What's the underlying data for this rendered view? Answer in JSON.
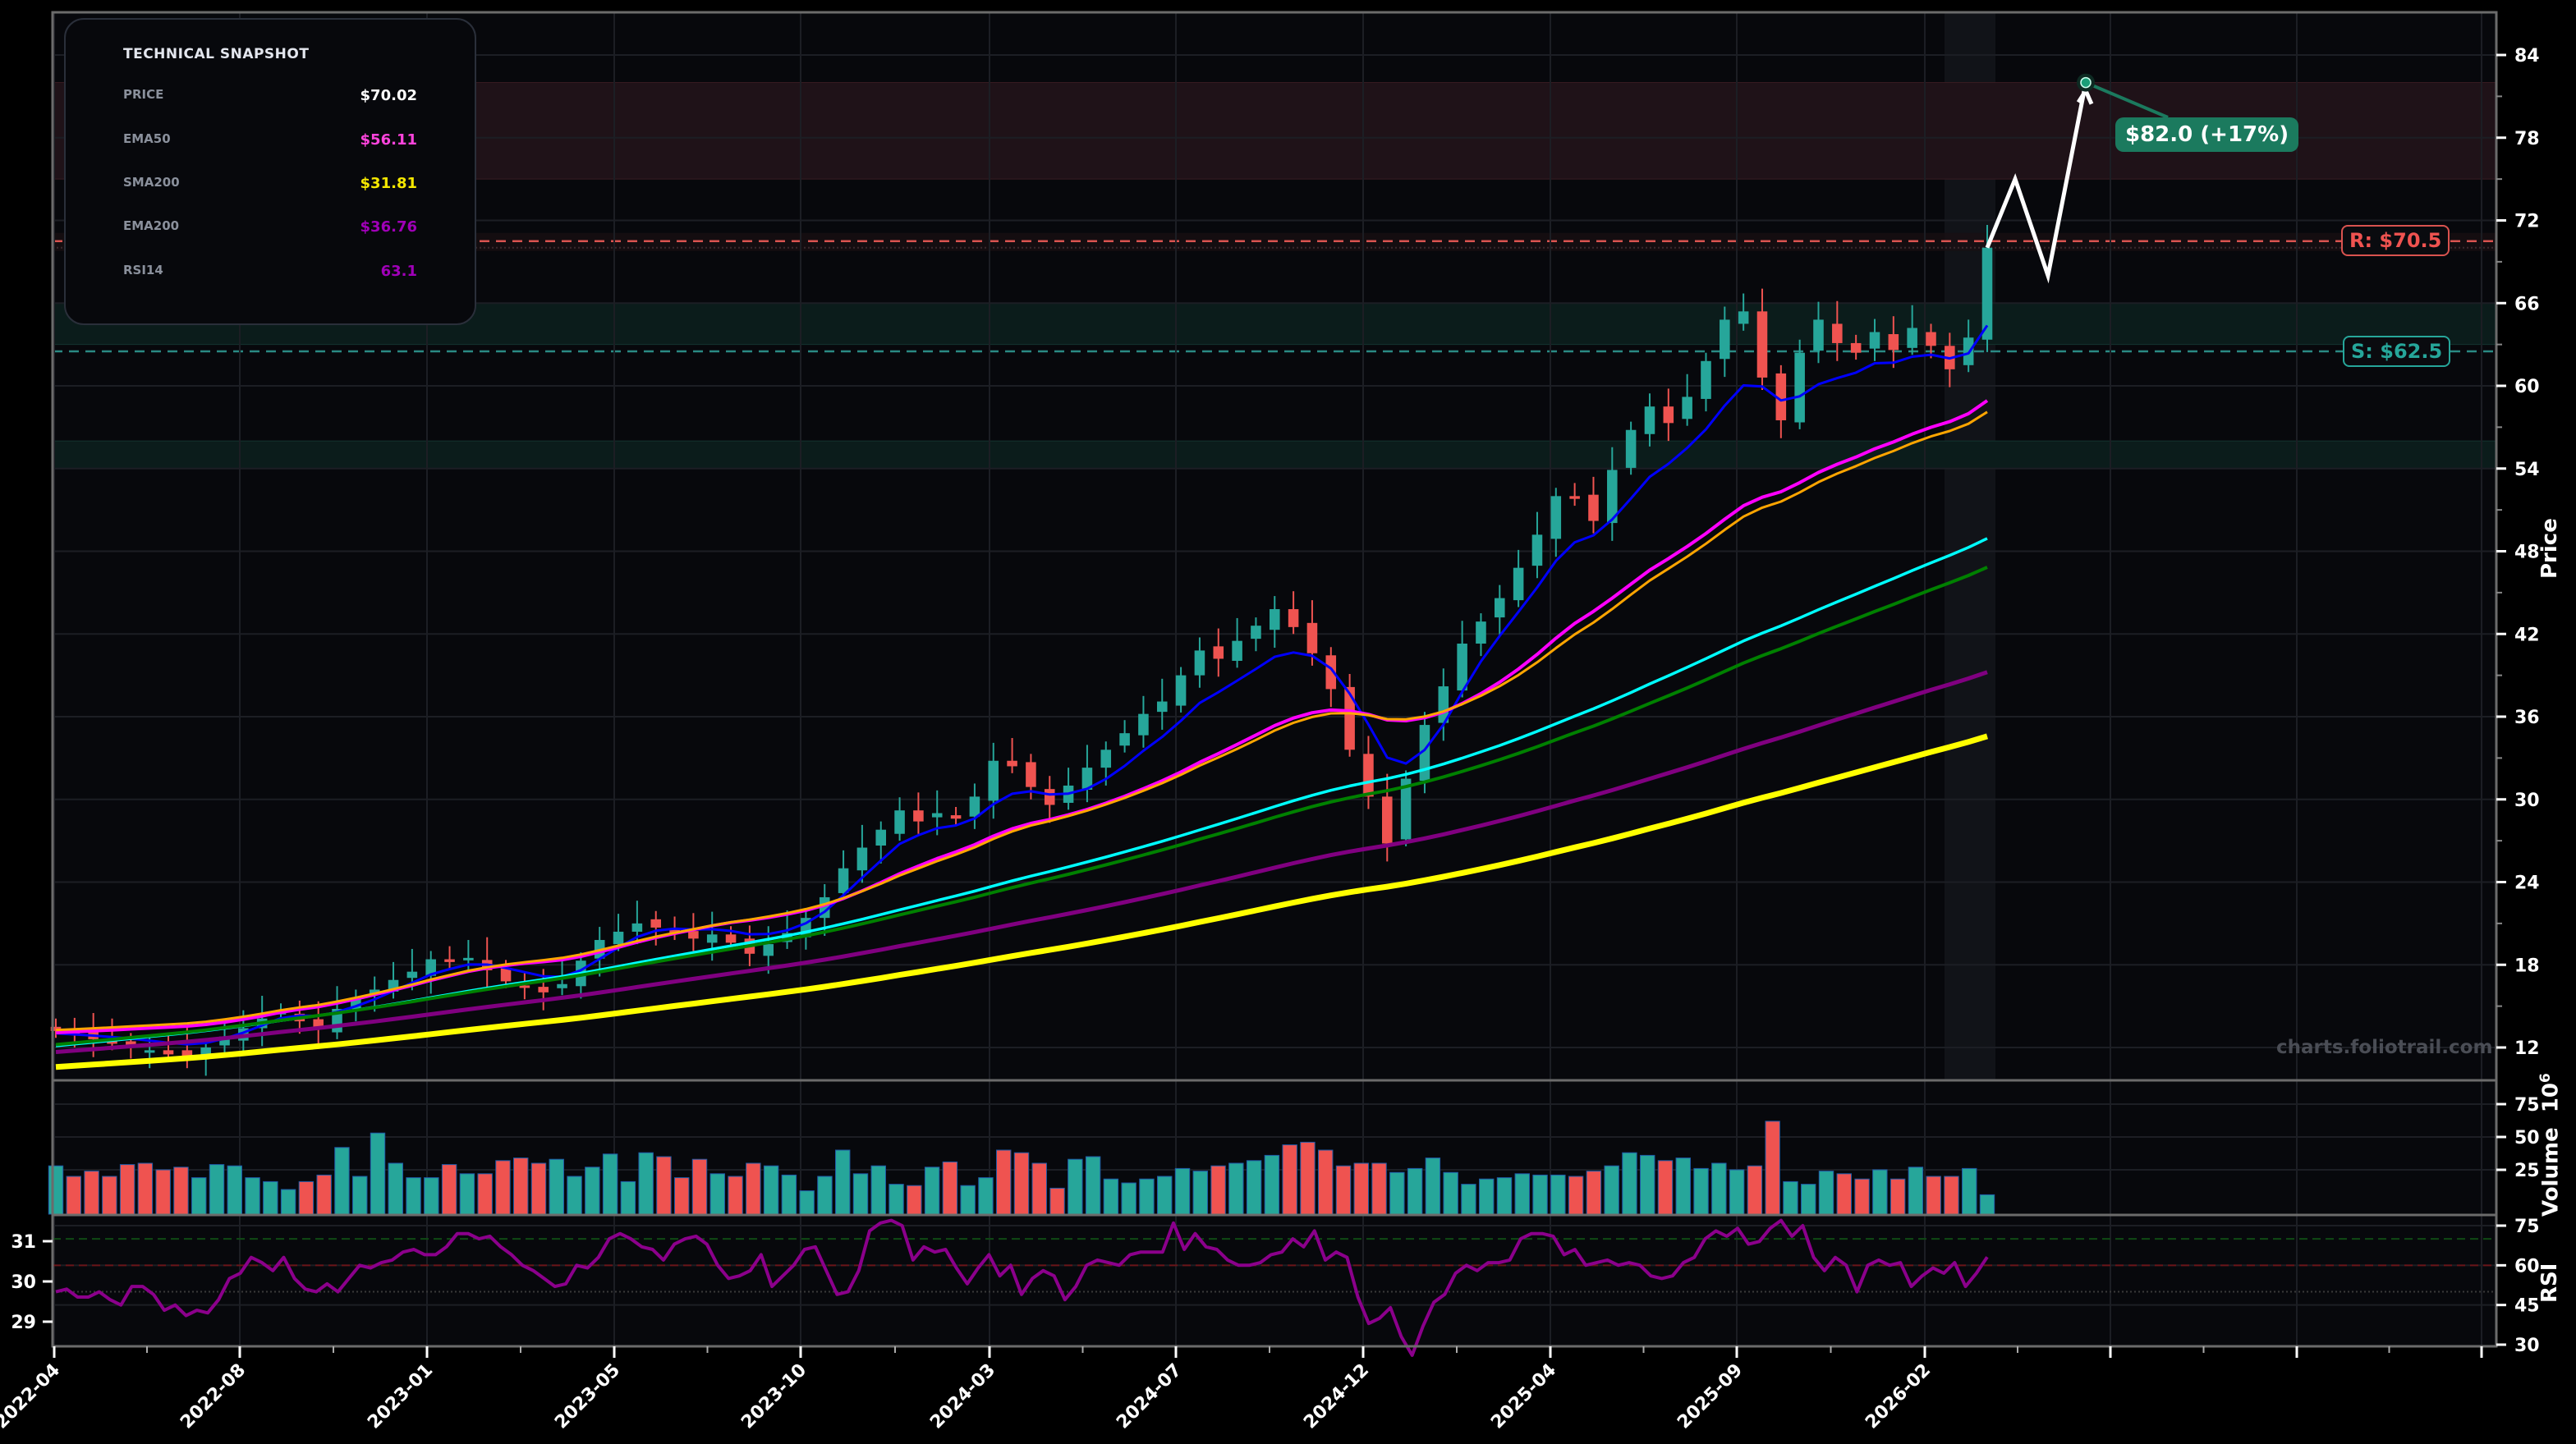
{
  "snapshot": {
    "title": "TECHNICAL SNAPSHOT",
    "rows": [
      {
        "label": "PRICE",
        "value": "$70.02",
        "color": "#ffffff"
      },
      {
        "label": "EMA50",
        "value": "$56.11",
        "color": "#ff44dd"
      },
      {
        "label": "SMA200",
        "value": "$31.81",
        "color": "#f5e800"
      },
      {
        "label": "EMA200",
        "value": "$36.76",
        "color": "#a000b8"
      },
      {
        "label": "RSI14",
        "value": "63.1",
        "color": "#a000b8"
      }
    ]
  },
  "annotations": {
    "resistance_label": "R: $70.5",
    "support_label": "S: $62.5",
    "target_label": "$82.0 (+17%)",
    "watermark": "charts.foliotrail.com"
  },
  "axes": {
    "price_title": "Price",
    "volume_title": "Volume",
    "volume_exponent": "10",
    "volume_exponent_power": "6",
    "rsi_title": "RSI"
  },
  "colors": {
    "background": "#07080c",
    "up": "#26a69a",
    "down": "#ef5350",
    "ema_fast_blue": "#0000ff",
    "ema50_magenta": "#ff00ff",
    "sma_orange": "#ffa500",
    "ema_cyan": "#00ffff",
    "sma_green": "#008000",
    "ema200_purple": "#800080",
    "sma200_yellow": "#ffff00",
    "resistance": "#d9534f",
    "support": "#26a69a",
    "target": "#1b7a5e"
  },
  "chart_data": {
    "type": "candlestick",
    "title": "",
    "xlabel": "",
    "ylabel": "Price",
    "x_ticks": [
      "2022-04",
      "2022-08",
      "2023-01",
      "2023-05",
      "2023-10",
      "2024-03",
      "2024-07",
      "2024-12",
      "2025-04",
      "2025-09",
      "2026-02"
    ],
    "price_ticks": [
      12,
      18,
      24,
      30,
      36,
      42,
      48,
      54,
      60,
      66,
      72,
      78,
      84
    ],
    "ylim": [
      9.5,
      86
    ],
    "last_price": 70.02,
    "resistance": 70.5,
    "support": 62.5,
    "resistance_zone": [
      75,
      82
    ],
    "support_zones": [
      [
        63,
        66
      ],
      [
        54,
        56
      ]
    ],
    "target": {
      "price": 82.0,
      "change_pct": 17
    },
    "forecast_path": [
      70.02,
      75,
      68,
      82
    ],
    "close_series": [
      13.2,
      12.9,
      12.6,
      12.3,
      12.1,
      11.8,
      11.5,
      11.4,
      12.0,
      12.8,
      13.4,
      14.1,
      14.6,
      13.9,
      13.4,
      14.8,
      15.6,
      16.2,
      16.9,
      17.5,
      18.4,
      18.2,
      18.5,
      17.6,
      16.8,
      16.4,
      16.0,
      16.6,
      18.3,
      19.8,
      20.4,
      21.0,
      20.7,
      20.3,
      19.9,
      20.2,
      19.6,
      18.8,
      19.5,
      20.3,
      21.4,
      22.9,
      25.0,
      26.5,
      27.8,
      29.2,
      28.4,
      29.0,
      28.6,
      30.2,
      32.8,
      32.4,
      30.9,
      29.6,
      31.0,
      32.3,
      33.6,
      34.8,
      36.2,
      37.1,
      39.0,
      40.8,
      40.2,
      41.5,
      42.6,
      43.8,
      42.5,
      40.6,
      38.0,
      33.6,
      30.2,
      26.8,
      31.5,
      35.4,
      38.2,
      41.3,
      42.9,
      44.6,
      46.8,
      49.2,
      52.0,
      51.8,
      50.2,
      53.9,
      56.8,
      58.5,
      57.3,
      59.2,
      61.8,
      64.8,
      65.4,
      60.6,
      57.5,
      62.4,
      64.8,
      63.1,
      62.4,
      63.9,
      62.6,
      64.2,
      62.9,
      61.2,
      63.5,
      70.02
    ],
    "moving_averages": [
      {
        "name": "EMA (blue)",
        "color": "#0000ff",
        "start": 12.5,
        "end": 62.0
      },
      {
        "name": "EMA50",
        "color": "#ff00ff",
        "start": 13.0,
        "end": 56.11
      },
      {
        "name": "SMA (orange)",
        "color": "#ffa500",
        "start": 13.3,
        "end": 55.0
      },
      {
        "name": "EMA (cyan)",
        "color": "#00ffff",
        "start": 12.0,
        "end": 47.3
      },
      {
        "name": "SMA (green)",
        "color": "#008000",
        "start": 12.1,
        "end": 45.0
      },
      {
        "name": "EMA200",
        "color": "#800080",
        "start": 11.5,
        "end": 36.76
      },
      {
        "name": "SMA200",
        "color": "#ffff00",
        "start": 10.3,
        "end": 31.81
      }
    ],
    "volume": {
      "unit": "1e6",
      "ticks": [
        25,
        50,
        75
      ],
      "values": [
        28,
        20,
        24,
        20,
        29,
        30,
        25,
        27,
        19,
        29,
        28,
        19,
        16,
        10,
        16,
        21,
        42,
        20,
        53,
        30,
        19,
        19,
        29,
        22,
        22,
        32,
        34,
        30,
        33,
        20,
        27,
        37,
        16,
        38,
        35,
        19,
        33,
        22,
        20,
        30,
        28,
        21,
        9,
        20,
        40,
        22,
        28,
        14,
        13,
        27,
        31,
        13,
        19,
        40,
        38,
        30,
        11,
        33,
        35,
        18,
        15,
        18,
        20,
        26,
        24,
        28,
        30,
        32,
        36,
        44,
        46,
        40,
        28,
        30,
        30,
        23,
        26,
        34,
        23,
        14,
        18,
        19,
        22,
        21,
        21,
        20,
        24,
        28,
        38,
        36,
        32,
        34,
        26,
        30,
        25,
        28,
        62,
        16,
        14,
        24,
        22,
        18,
        25,
        18,
        27,
        20,
        20,
        26,
        6
      ],
      "ylim": [
        0,
        95
      ]
    },
    "rsi": {
      "period": 14,
      "last": 63.1,
      "right_ticks": [
        30,
        45,
        60,
        75
      ],
      "left_ticks": [
        29,
        30,
        31
      ],
      "overbought": 70,
      "midline": 60,
      "values": [
        50,
        51,
        48,
        48,
        50,
        47,
        45,
        52,
        52,
        49,
        43,
        45,
        41,
        43,
        42,
        47,
        55,
        57,
        63,
        61,
        58,
        63,
        55,
        51,
        50,
        53,
        50,
        55,
        60,
        59,
        61,
        62,
        65,
        66,
        64,
        64,
        67,
        72,
        72,
        70,
        71,
        67,
        64,
        60,
        58,
        55,
        52,
        53,
        60,
        59,
        63,
        70,
        72,
        70,
        67,
        66,
        62,
        68,
        70,
        71,
        68,
        60,
        55,
        56,
        58,
        64,
        52,
        56,
        60,
        66,
        67,
        58,
        49,
        50,
        58,
        73,
        76,
        77,
        75,
        62,
        67,
        65,
        66,
        59,
        53,
        59,
        64,
        56,
        60,
        49,
        55,
        58,
        56,
        47,
        52,
        60,
        62,
        61,
        60,
        64,
        65,
        65,
        65,
        76,
        66,
        72,
        67,
        66,
        62,
        60,
        60,
        61,
        64,
        65,
        70,
        67,
        73,
        62,
        65,
        63,
        48,
        38,
        40,
        44,
        33,
        26,
        37,
        46,
        49,
        57,
        60,
        58,
        61,
        61,
        62,
        70,
        72,
        72,
        71,
        64,
        66,
        60,
        61,
        62,
        60,
        61,
        60,
        56,
        55,
        56,
        61,
        63,
        70,
        73,
        71,
        74,
        68,
        69,
        74,
        77,
        71,
        75,
        63,
        58,
        63,
        60,
        50,
        60,
        62,
        60,
        61,
        52,
        56,
        59,
        57,
        61,
        52,
        57,
        63.1
      ],
      "ylim": [
        28,
        80
      ]
    }
  }
}
